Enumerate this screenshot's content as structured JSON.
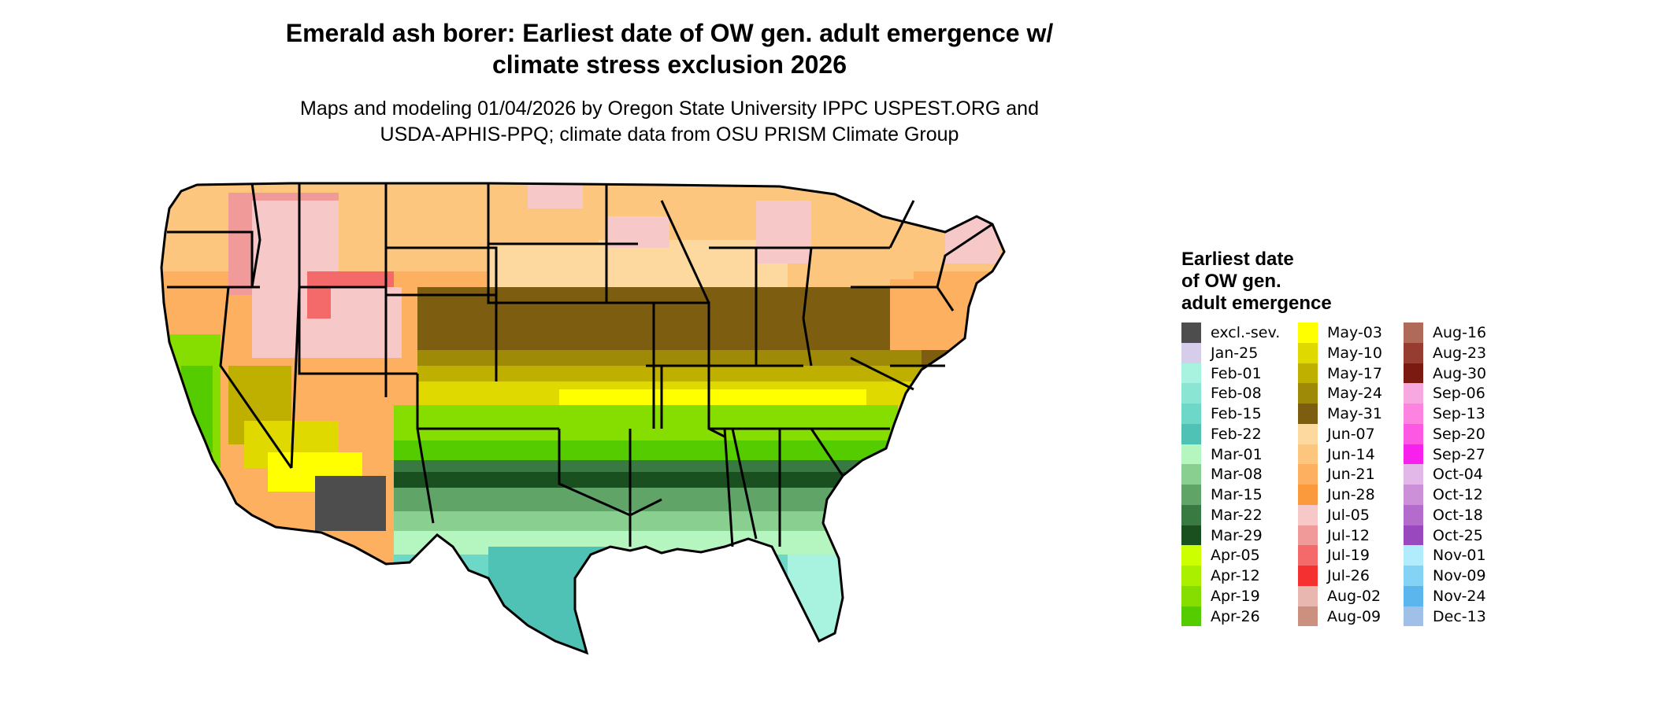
{
  "title_line1": "Emerald ash borer: Earliest date of OW gen. adult emergence w/",
  "title_line2": "climate stress exclusion 2026",
  "subtitle_line1": "Maps and modeling 01/04/2026 by Oregon State University IPPC USPEST.ORG and",
  "subtitle_line2": "USDA-APHIS-PPQ; climate data from OSU PRISM Climate Group",
  "legend": {
    "title_line1": "Earliest date",
    "title_line2": "of OW gen.",
    "title_line3": "adult emergence",
    "columns": [
      [
        {
          "label": "excl.-sev.",
          "color": "#4d4d4d"
        },
        {
          "label": "Jan-25",
          "color": "#d6cdea"
        },
        {
          "label": "Feb-01",
          "color": "#a7f3df"
        },
        {
          "label": "Feb-08",
          "color": "#8ae6d3"
        },
        {
          "label": "Feb-15",
          "color": "#6dd7c8"
        },
        {
          "label": "Feb-22",
          "color": "#4fc2b5"
        },
        {
          "label": "Mar-01",
          "color": "#b5f5c0"
        },
        {
          "label": "Mar-08",
          "color": "#89cf8f"
        },
        {
          "label": "Mar-15",
          "color": "#60a468"
        },
        {
          "label": "Mar-22",
          "color": "#387a41"
        },
        {
          "label": "Mar-29",
          "color": "#1a4f1f"
        },
        {
          "label": "Apr-05",
          "color": "#ccff00"
        },
        {
          "label": "Apr-12",
          "color": "#aaee00"
        },
        {
          "label": "Apr-19",
          "color": "#86de00"
        },
        {
          "label": "Apr-26",
          "color": "#55cc00"
        }
      ],
      [
        {
          "label": "May-03",
          "color": "#ffff00"
        },
        {
          "label": "May-10",
          "color": "#dfd900"
        },
        {
          "label": "May-17",
          "color": "#bfb000"
        },
        {
          "label": "May-24",
          "color": "#9f8a08"
        },
        {
          "label": "May-31",
          "color": "#7d5e10"
        },
        {
          "label": "Jun-07",
          "color": "#fdd9a0"
        },
        {
          "label": "Jun-14",
          "color": "#fcc67f"
        },
        {
          "label": "Jun-21",
          "color": "#fcb060"
        },
        {
          "label": "Jun-28",
          "color": "#fb9a3c"
        },
        {
          "label": "Jul-05",
          "color": "#f7c8c8"
        },
        {
          "label": "Jul-12",
          "color": "#f19a9a"
        },
        {
          "label": "Jul-19",
          "color": "#f46a6a"
        },
        {
          "label": "Jul-26",
          "color": "#f43030"
        },
        {
          "label": "Aug-02",
          "color": "#e8b8b0"
        },
        {
          "label": "Aug-09",
          "color": "#cc9080"
        }
      ],
      [
        {
          "label": "Aug-16",
          "color": "#b06a5a"
        },
        {
          "label": "Aug-23",
          "color": "#963c30"
        },
        {
          "label": "Aug-30",
          "color": "#7a1a10"
        },
        {
          "label": "Sep-06",
          "color": "#f8a8e0"
        },
        {
          "label": "Sep-13",
          "color": "#fc84e0"
        },
        {
          "label": "Sep-20",
          "color": "#fc58e4"
        },
        {
          "label": "Sep-27",
          "color": "#f820ec"
        },
        {
          "label": "Oct-04",
          "color": "#e2b8e8"
        },
        {
          "label": "Oct-12",
          "color": "#cc90d8"
        },
        {
          "label": "Oct-18",
          "color": "#b46ccc"
        },
        {
          "label": "Oct-25",
          "color": "#9a48be"
        },
        {
          "label": "Nov-01",
          "color": "#b0ecfc"
        },
        {
          "label": "Nov-09",
          "color": "#84d2f4"
        },
        {
          "label": "Nov-24",
          "color": "#5ab6ec"
        },
        {
          "label": "Dec-13",
          "color": "#a0c0e8"
        }
      ]
    ]
  }
}
